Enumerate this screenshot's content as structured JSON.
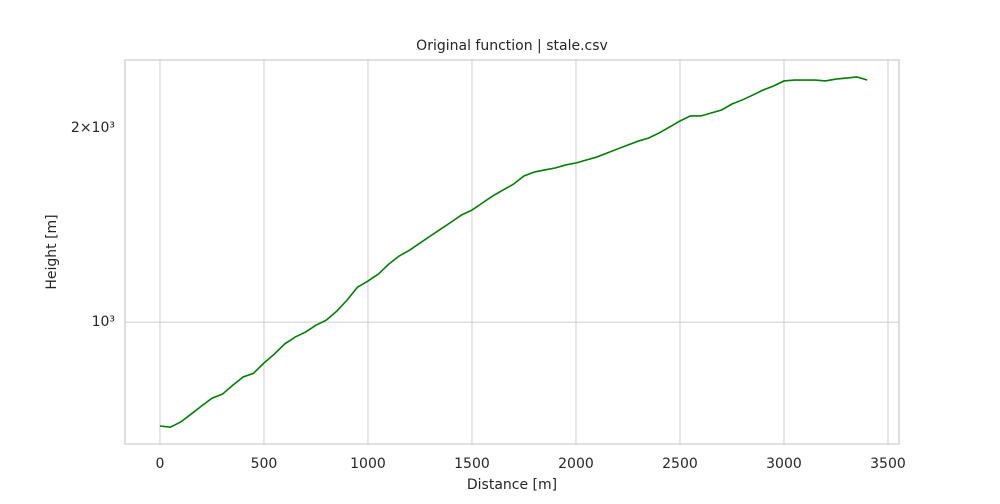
{
  "chart_data": {
    "type": "line",
    "title": "Original function | stale.csv",
    "xlabel": "Distance [m]",
    "ylabel": "Height [m]",
    "x": [
      0,
      50,
      100,
      150,
      200,
      250,
      300,
      350,
      400,
      450,
      500,
      550,
      600,
      650,
      700,
      750,
      800,
      850,
      900,
      950,
      1000,
      1050,
      1100,
      1150,
      1200,
      1250,
      1300,
      1350,
      1400,
      1450,
      1500,
      1550,
      1600,
      1650,
      1700,
      1750,
      1800,
      1850,
      1900,
      1950,
      2000,
      2050,
      2100,
      2150,
      2200,
      2250,
      2300,
      2350,
      2400,
      2450,
      2500,
      2550,
      2600,
      2650,
      2700,
      2750,
      2800,
      2850,
      2900,
      2950,
      3000,
      3050,
      3100,
      3150,
      3200,
      3250,
      3300,
      3350,
      3400
    ],
    "values": [
      690,
      687,
      700,
      720,
      741,
      762,
      773,
      798,
      822,
      833,
      864,
      892,
      925,
      948,
      965,
      989,
      1007,
      1040,
      1082,
      1133,
      1158,
      1187,
      1230,
      1266,
      1293,
      1326,
      1360,
      1394,
      1429,
      1466,
      1492,
      1530,
      1569,
      1603,
      1637,
      1685,
      1709,
      1722,
      1734,
      1753,
      1765,
      1784,
      1803,
      1829,
      1856,
      1882,
      1909,
      1930,
      1965,
      2007,
      2051,
      2088,
      2088,
      2110,
      2133,
      2179,
      2211,
      2250,
      2291,
      2324,
      2366,
      2374,
      2374,
      2374,
      2366,
      2382,
      2391,
      2400,
      2374
    ],
    "color": "#008000",
    "xlim": [
      -168,
      3553
    ],
    "xticks": [
      0,
      500,
      1000,
      1500,
      2000,
      2500,
      3000,
      3500
    ],
    "ylim": [
      647,
      2550
    ],
    "ylog": true,
    "yticks": [
      {
        "value": 1000,
        "label": "10³"
      },
      {
        "value": 2000,
        "label": "2×10³",
        "minor": true
      }
    ],
    "grid": true
  }
}
